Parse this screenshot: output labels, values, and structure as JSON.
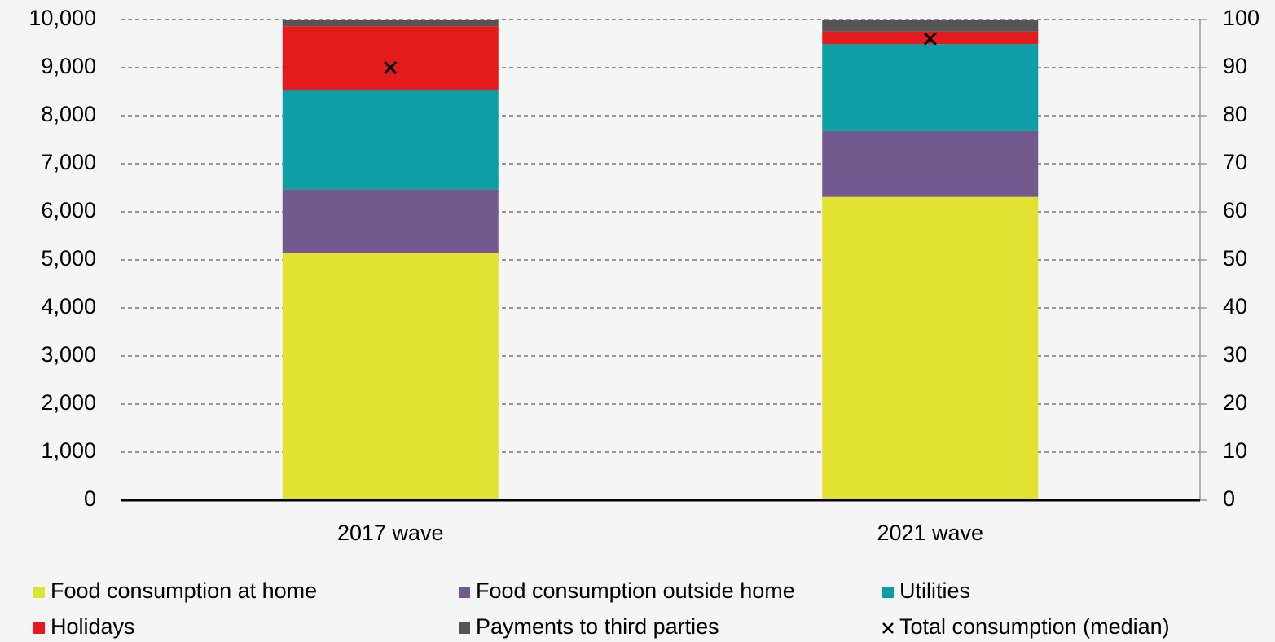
{
  "chart_data": {
    "type": "bar",
    "stacked": true,
    "categories": [
      "2017 wave",
      "2021 wave"
    ],
    "series": [
      {
        "name": "Food consumption at home",
        "color": "#e1e232",
        "axis": "y2",
        "values": [
          51.5,
          63.1
        ]
      },
      {
        "name": "Food consumption outside home",
        "color": "#725a8e",
        "axis": "y2",
        "values": [
          13.2,
          13.7
        ]
      },
      {
        "name": "Utilities",
        "color": "#0e9ea5",
        "axis": "y2",
        "values": [
          20.7,
          18.1
        ]
      },
      {
        "name": "Holidays",
        "color": "#e41a1c",
        "axis": "y2",
        "values": [
          13.2,
          2.6
        ]
      },
      {
        "name": "Payments to third parties",
        "color": "#555555",
        "axis": "y2",
        "values": [
          1.4,
          2.5
        ]
      },
      {
        "name": "Total consumption (median)",
        "color": "#000000",
        "marker": "x",
        "values": [
          9000,
          9600
        ]
      }
    ],
    "ylim": [
      0,
      10000
    ],
    "yticks": [
      0,
      {
        "value": 1000,
        "label": "1,000"
      },
      {
        "value": 2000,
        "label": "2,000"
      },
      {
        "value": 3000,
        "label": "3,000"
      },
      {
        "value": 4000,
        "label": "4,000"
      },
      {
        "value": 5000,
        "label": "5,000"
      },
      {
        "value": 6000,
        "label": "6,000"
      },
      {
        "value": 7000,
        "label": "7,000"
      },
      {
        "value": 8000,
        "label": "8,000"
      },
      {
        "value": 9000,
        "label": "9,000"
      },
      {
        "value": 10000,
        "label": "10,000"
      }
    ],
    "y2lim": [
      0,
      100
    ],
    "y2ticks": [
      0,
      10,
      20,
      30,
      40,
      50,
      60,
      70,
      80,
      90,
      100
    ],
    "grid": true,
    "legend": "bottom"
  }
}
